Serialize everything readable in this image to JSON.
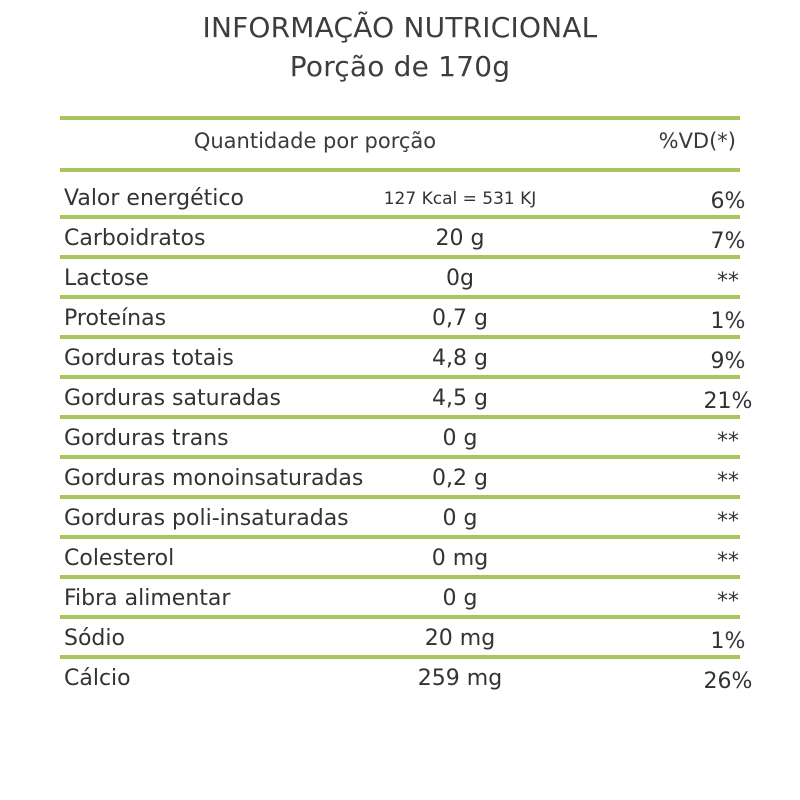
{
  "title": "INFORMAÇÃO NUTRICIONAL",
  "subtitle": "Porção de 170g",
  "header": {
    "quantity": "Quantidade por porção",
    "vd": "%VD(*)"
  },
  "rows": [
    {
      "name": "Valor energético",
      "amount": "127 Kcal = 531 KJ",
      "vd": "6%"
    },
    {
      "name": "Carboidratos",
      "amount": "20 g",
      "vd": "7%"
    },
    {
      "name": "Lactose",
      "amount": "0g",
      "vd": "**"
    },
    {
      "name": "Proteínas",
      "amount": "0,7 g",
      "vd": "1%"
    },
    {
      "name": "Gorduras totais",
      "amount": "4,8 g",
      "vd": "9%"
    },
    {
      "name": "Gorduras saturadas",
      "amount": "4,5 g",
      "vd": "21%"
    },
    {
      "name": "Gorduras trans",
      "amount": "0 g",
      "vd": "**"
    },
    {
      "name": "Gorduras monoinsaturadas",
      "amount": "0,2 g",
      "vd": "**"
    },
    {
      "name": "Gorduras poli-insaturadas",
      "amount": "0 g",
      "vd": "**"
    },
    {
      "name": "Colesterol",
      "amount": "0 mg",
      "vd": "**"
    },
    {
      "name": "Fibra alimentar",
      "amount": "0 g",
      "vd": "**"
    },
    {
      "name": "Sódio",
      "amount": "20 mg",
      "vd": "1%"
    },
    {
      "name": "Cálcio",
      "amount": "259 mg",
      "vd": "26%"
    }
  ]
}
